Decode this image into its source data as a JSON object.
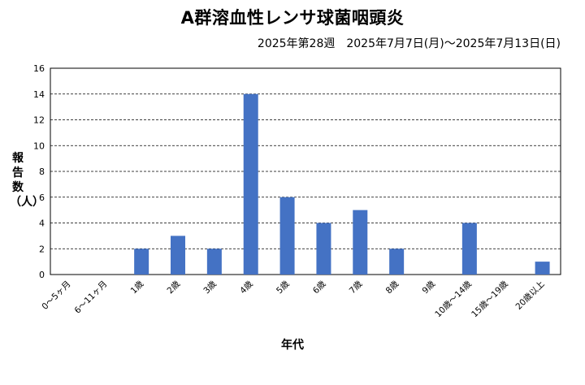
{
  "chart_data": {
    "type": "bar",
    "title": "A群溶血性レンサ球菌咽頭炎",
    "subtitle": "2025年第28週　2025年7月7日(月)〜2025年7月13日(日)",
    "xlabel": "年代",
    "ylabel": "報告数（人）",
    "categories": [
      "0〜5ヶ月",
      "6〜11ヶ月",
      "1歳",
      "2歳",
      "3歳",
      "4歳",
      "5歳",
      "6歳",
      "7歳",
      "8歳",
      "9歳",
      "10歳〜14歳",
      "15歳〜19歳",
      "20歳以上"
    ],
    "values": [
      0,
      0,
      2,
      3,
      2,
      14,
      6,
      4,
      5,
      2,
      0,
      4,
      0,
      1
    ],
    "ylim": [
      0,
      16
    ],
    "yticks": [
      0,
      2,
      4,
      6,
      8,
      10,
      12,
      14,
      16
    ],
    "grid": true,
    "bar_color": "#4472c4"
  }
}
